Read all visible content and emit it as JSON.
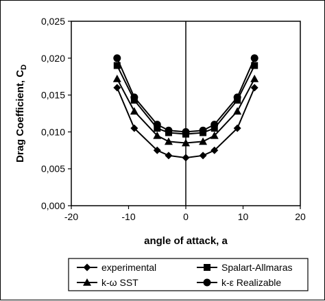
{
  "chart_data": {
    "type": "line",
    "title": "",
    "xlabel": "angle of attack, a",
    "ylabel": "Drag Coefficient, C",
    "ylabel_sub": "D",
    "xlim": [
      -20,
      20
    ],
    "ylim": [
      0,
      0.025
    ],
    "xticks": [
      -20,
      -10,
      0,
      10,
      20
    ],
    "yticks": [
      0,
      0.005,
      0.01,
      0.015,
      0.02,
      0.025
    ],
    "xtick_labels": [
      "-20",
      "-10",
      "0",
      "10",
      "20"
    ],
    "ytick_labels": [
      "0,000",
      "0,005",
      "0,010",
      "0,015",
      "0,020",
      "0,025"
    ],
    "grid": false,
    "legend_position": "bottom",
    "series": [
      {
        "name": "experimental",
        "marker": "diamond",
        "x": [
          -12,
          -9,
          -5,
          -3,
          0,
          3,
          5,
          9,
          12
        ],
        "y": [
          0.016,
          0.0105,
          0.0075,
          0.0068,
          0.0065,
          0.0068,
          0.0075,
          0.0105,
          0.016
        ]
      },
      {
        "name": "Spalart-Allmaras",
        "marker": "square",
        "x": [
          -12,
          -9,
          -5,
          -3,
          0,
          3,
          5,
          9,
          12
        ],
        "y": [
          0.019,
          0.0143,
          0.0105,
          0.0099,
          0.0097,
          0.0099,
          0.0105,
          0.0143,
          0.019
        ]
      },
      {
        "name": "k-ω SST",
        "marker": "triangle",
        "x": [
          -12,
          -9,
          -5,
          -3,
          0,
          3,
          5,
          9,
          12
        ],
        "y": [
          0.0172,
          0.0128,
          0.0095,
          0.0087,
          0.0085,
          0.0087,
          0.0095,
          0.0128,
          0.0172
        ]
      },
      {
        "name": "k-ε Realizable",
        "marker": "circle",
        "x": [
          -12,
          -9,
          -5,
          -3,
          0,
          3,
          5,
          9,
          12
        ],
        "y": [
          0.02,
          0.0147,
          0.011,
          0.0102,
          0.01,
          0.0102,
          0.011,
          0.0147,
          0.02
        ]
      }
    ]
  }
}
